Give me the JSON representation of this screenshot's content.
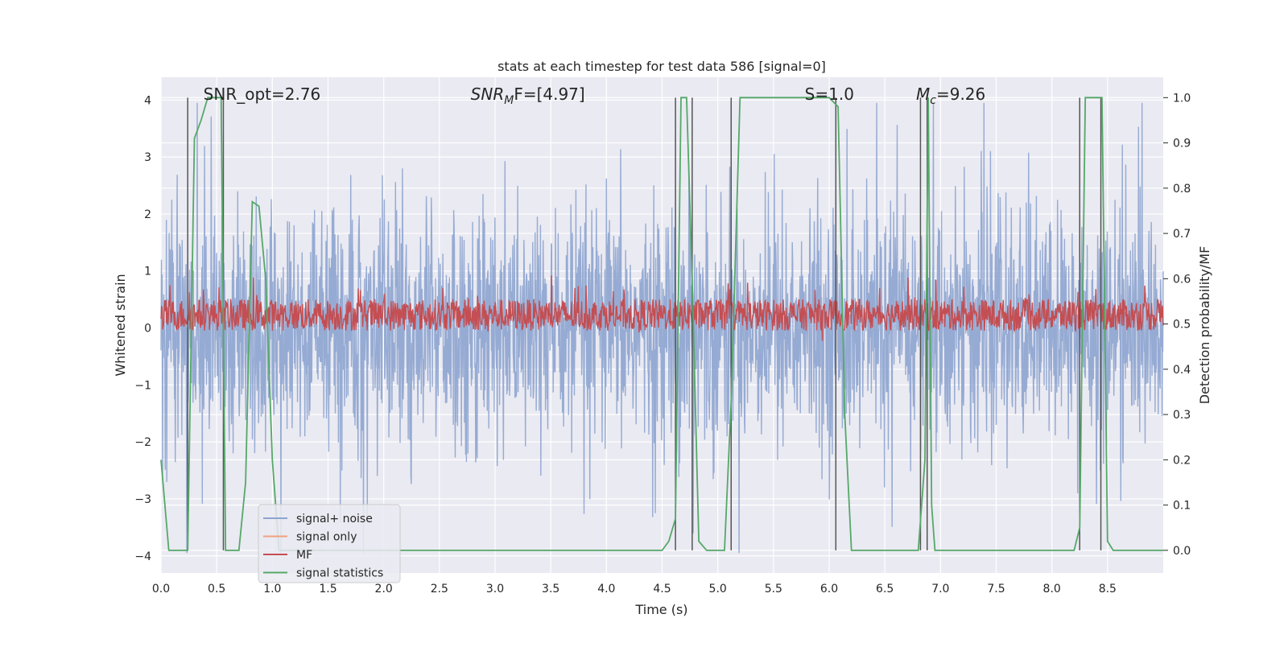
{
  "chart_data": {
    "type": "line",
    "title": "stats at each timestep for test data 586 [signal=0]",
    "xlabel": "Time (s)",
    "ylabel": "Whitened strain",
    "ylabel_right": "Detection probability/MF",
    "xlim": [
      0.0,
      9.0
    ],
    "ylim": [
      -4.3,
      4.4
    ],
    "ylim_right": [
      -0.05,
      1.045
    ],
    "xticks": [
      "0.0",
      "0.5",
      "1.0",
      "1.5",
      "2.0",
      "2.5",
      "3.0",
      "3.5",
      "4.0",
      "4.5",
      "5.0",
      "5.5",
      "6.0",
      "6.5",
      "7.0",
      "7.5",
      "8.0",
      "8.5"
    ],
    "yticks": [
      "−4",
      "−3",
      "−2",
      "−1",
      "0",
      "1",
      "2",
      "3",
      "4"
    ],
    "yticks_right": [
      "0.0",
      "0.1",
      "0.2",
      "0.3",
      "0.4",
      "0.5",
      "0.6",
      "0.7",
      "0.8",
      "0.9",
      "1.0"
    ],
    "grid": true,
    "annotations": [
      {
        "text": "SNR_opt=2.76",
        "x": 0.2,
        "y": 4.05
      },
      {
        "text": "SNR",
        "sub": "M",
        "rest": "F=[4.97]",
        "x": 2.6,
        "y": 4.05
      },
      {
        "text": "S=1.0",
        "x": 5.6,
        "y": 4.05
      },
      {
        "text": "M",
        "sub": "c",
        "rest": "=9.26",
        "x": 6.6,
        "y": 4.05
      }
    ],
    "series": [
      {
        "name": "signal+ noise",
        "color": "#8da4cf",
        "description": "whitened noisy strain, amplitude roughly ±2.5 with spikes to ±4"
      },
      {
        "name": "signal only",
        "color": "#f0a17e",
        "description": "zero signal (signal=0)"
      },
      {
        "name": "MF",
        "color": "#c44e52",
        "description": "matched-filter output, about 0.05 to 0.6 on right axis"
      },
      {
        "name": "signal statistics",
        "color": "#55a868",
        "x": [
          0.0,
          0.07,
          0.12,
          0.17,
          0.24,
          0.3,
          0.36,
          0.42,
          0.48,
          0.54,
          0.58,
          0.63,
          0.7,
          0.76,
          0.82,
          0.88,
          0.94,
          1.0,
          1.06,
          1.15,
          1.3,
          2.5,
          2.7,
          2.8,
          3.5,
          4.0,
          4.5,
          4.56,
          4.62,
          4.67,
          4.72,
          4.77,
          4.83,
          4.9,
          4.98,
          5.06,
          5.12,
          5.2,
          5.5,
          6.0,
          6.08,
          6.14,
          6.2,
          6.3,
          6.8,
          6.86,
          6.89,
          6.92,
          6.95,
          7.0,
          7.5,
          8.2,
          8.25,
          8.3,
          8.38,
          8.45,
          8.5,
          8.55,
          9.0
        ],
        "values": [
          0.2,
          0.0,
          0.0,
          0.0,
          0.0,
          0.91,
          0.95,
          1.0,
          1.0,
          1.0,
          0.0,
          0.0,
          0.0,
          0.15,
          0.77,
          0.76,
          0.6,
          0.2,
          0.0,
          0.0,
          0.0,
          0.0,
          0.0,
          0.0,
          0.0,
          0.0,
          0.0,
          0.02,
          0.07,
          1.0,
          1.0,
          0.6,
          0.02,
          0.0,
          0.0,
          0.0,
          0.33,
          1.0,
          1.0,
          1.0,
          0.98,
          0.3,
          0.0,
          0.0,
          0.0,
          0.2,
          1.0,
          0.1,
          0.0,
          0.0,
          0.0,
          0.0,
          0.05,
          1.0,
          1.0,
          1.0,
          0.02,
          0.0,
          0.0
        ]
      },
      {
        "name": "detection markers",
        "color": "#555555",
        "x": [
          0.24,
          0.56,
          4.62,
          4.77,
          5.12,
          6.06,
          6.82,
          6.88,
          8.25,
          8.44
        ]
      }
    ],
    "legend": {
      "position": "lower-left",
      "entries": [
        "signal+ noise",
        "signal only",
        "MF",
        "signal statistics"
      ]
    }
  }
}
